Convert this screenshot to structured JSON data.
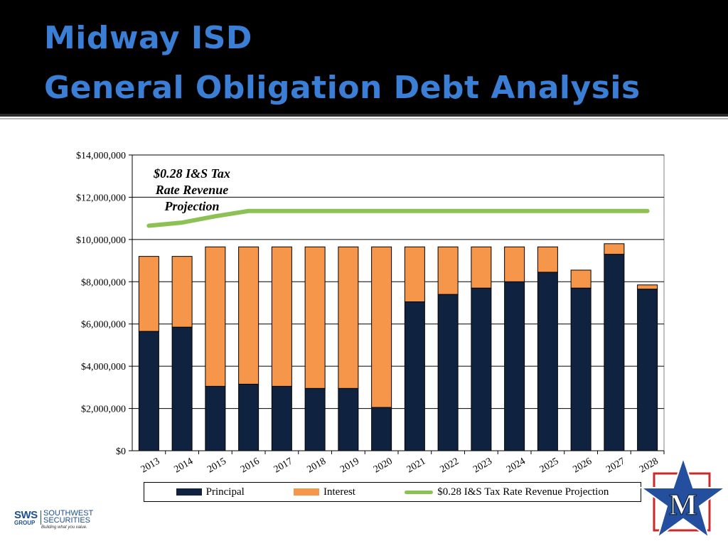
{
  "slide": {
    "title_line1": "Midway ISD",
    "title_line2": "General Obligation Debt Analysis",
    "title_color": "#3a7fd5"
  },
  "chart_data": {
    "type": "bar",
    "stacked": true,
    "categories": [
      "2013",
      "2014",
      "2015",
      "2016",
      "2017",
      "2018",
      "2019",
      "2020",
      "2021",
      "2022",
      "2023",
      "2024",
      "2025",
      "2026",
      "2027",
      "2028"
    ],
    "series": [
      {
        "name": "Principal",
        "kind": "bar",
        "color": "#0f2341",
        "values": [
          5650000,
          5850000,
          3050000,
          3150000,
          3050000,
          2950000,
          2950000,
          2050000,
          7050000,
          7400000,
          7700000,
          8000000,
          8450000,
          7700000,
          9300000,
          7650000
        ]
      },
      {
        "name": "Interest",
        "kind": "bar",
        "color": "#f5964b",
        "values": [
          3550000,
          3350000,
          6600000,
          6500000,
          6600000,
          6700000,
          6700000,
          7600000,
          2600000,
          2250000,
          1950000,
          1650000,
          1200000,
          850000,
          500000,
          200000
        ]
      },
      {
        "name": "$0.28 I&S Tax Rate Revenue Projection",
        "kind": "line",
        "color": "#8dc153",
        "values": [
          10650000,
          10800000,
          11100000,
          11350000,
          11350000,
          11350000,
          11350000,
          11350000,
          11350000,
          11350000,
          11350000,
          11350000,
          11350000,
          11350000,
          11350000,
          11350000
        ]
      }
    ],
    "y_ticks": [
      "$0",
      "$2,000,000",
      "$4,000,000",
      "$6,000,000",
      "$8,000,000",
      "$10,000,000",
      "$12,000,000",
      "$14,000,000"
    ],
    "ylim": [
      0,
      14000000
    ],
    "y_step": 2000000,
    "grid": true,
    "legend_position": "bottom",
    "annotation": [
      "$0.28 I&S Tax",
      "Rate Revenue",
      "Projection"
    ]
  },
  "footer": {
    "logo_primary": "SWS",
    "logo_secondary": "GROUP",
    "logo_name": "SOUTHWEST SECURITIES",
    "logo_tagline": "Building what you value.",
    "mascot_letter": "M"
  }
}
